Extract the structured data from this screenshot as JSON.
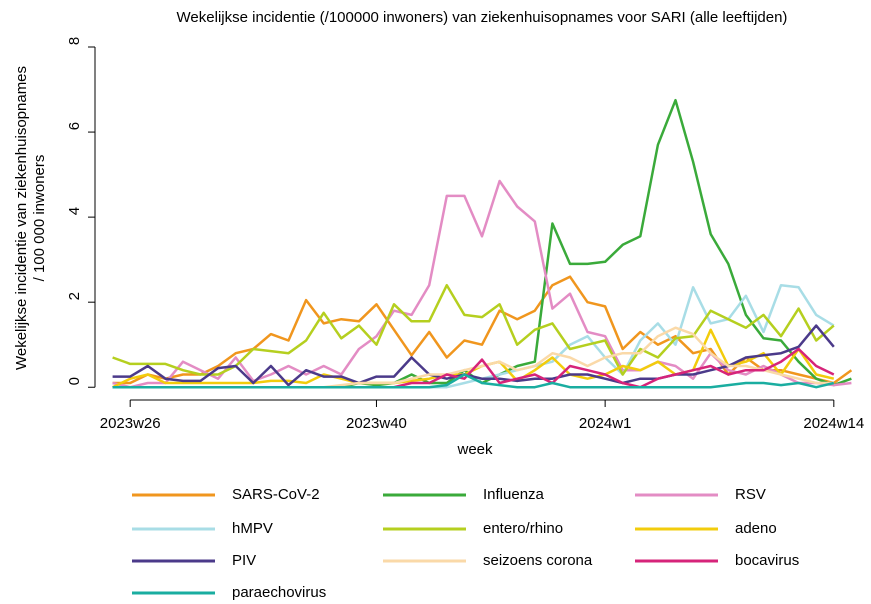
{
  "chart_data": {
    "type": "line",
    "title": "Wekelijkse incidentie (/100000 inwoners) van ziekenhuisopnames voor SARI (alle leeftijden)",
    "x_label": "week",
    "y_label": [
      "Wekelijkse incidentie van ziekenhuisopnames",
      "/ 100 000 inwoners"
    ],
    "categories": [
      null,
      "2023w26",
      null,
      null,
      null,
      null,
      null,
      null,
      null,
      null,
      null,
      null,
      null,
      null,
      null,
      "2023w40",
      null,
      null,
      null,
      null,
      null,
      null,
      null,
      null,
      null,
      null,
      null,
      null,
      "2024w1",
      null,
      null,
      null,
      null,
      null,
      null,
      null,
      null,
      null,
      null,
      null,
      null,
      "2024w14",
      null
    ],
    "ylim": [
      -0.3,
      8.4
    ],
    "yticks": [
      0,
      2,
      4,
      6,
      8
    ],
    "series": [
      {
        "name": "SARS-CoV-2",
        "color": "#f0961e",
        "values": [
          0.1,
          0.1,
          0.3,
          0.2,
          0.3,
          0.3,
          0.5,
          0.8,
          0.9,
          1.25,
          1.1,
          2.05,
          1.5,
          1.6,
          1.55,
          1.95,
          1.35,
          0.75,
          1.3,
          0.7,
          1.1,
          1.0,
          1.8,
          1.6,
          1.8,
          2.4,
          2.6,
          2.0,
          1.9,
          0.9,
          1.3,
          1.0,
          1.2,
          0.8,
          0.9,
          0.3,
          0.7,
          0.4,
          0.4,
          0.3,
          0.2,
          0.1,
          0.4
        ]
      },
      {
        "name": "Influenza",
        "color": "#3aaa3a",
        "values": [
          0,
          0,
          0,
          0,
          0,
          0,
          0,
          0,
          0,
          0,
          0,
          0,
          0,
          0,
          0.1,
          0.05,
          0.1,
          0.3,
          0.1,
          0.1,
          0.4,
          0.1,
          0.3,
          0.5,
          0.6,
          3.85,
          2.9,
          2.9,
          2.95,
          3.35,
          3.55,
          5.7,
          6.75,
          5.3,
          3.6,
          2.9,
          1.7,
          1.15,
          1.1,
          0.6,
          0.2,
          0.05,
          0.2
        ]
      },
      {
        "name": "RSV",
        "color": "#e38cc4",
        "values": [
          0.1,
          0,
          0.1,
          0.1,
          0.6,
          0.4,
          0.2,
          0.7,
          0.15,
          0.3,
          0.5,
          0.3,
          0.5,
          0.3,
          0.9,
          1.2,
          1.8,
          1.7,
          2.4,
          4.5,
          4.5,
          3.55,
          4.85,
          4.25,
          3.9,
          1.85,
          2.2,
          1.3,
          1.2,
          0.4,
          0.4,
          0.6,
          0.5,
          0.2,
          0.8,
          0.4,
          0.3,
          0.5,
          0.3,
          0.1,
          0.1,
          0.05,
          0.1
        ]
      },
      {
        "name": "hMPV",
        "color": "#a8dde6",
        "values": [
          0,
          0,
          0,
          0,
          0,
          0,
          0,
          0,
          0,
          0,
          0,
          0,
          0,
          0,
          0,
          0,
          0,
          0,
          0,
          0,
          0.1,
          0.2,
          0.3,
          0.4,
          0.5,
          0.6,
          1.0,
          1.2,
          0.7,
          0.3,
          1.1,
          1.5,
          1.0,
          2.35,
          1.5,
          1.6,
          2.15,
          1.3,
          2.4,
          2.35,
          1.7,
          1.45,
          null
        ]
      },
      {
        "name": "entero/rhino",
        "color": "#b5cf1f",
        "values": [
          0.7,
          0.55,
          0.55,
          0.55,
          0.4,
          0.3,
          0.3,
          0.5,
          0.9,
          0.85,
          0.8,
          1.1,
          1.75,
          1.15,
          1.45,
          1.0,
          1.95,
          1.55,
          1.55,
          2.4,
          1.7,
          1.65,
          1.95,
          1.0,
          1.35,
          1.5,
          0.9,
          1.0,
          1.1,
          0.3,
          0.9,
          0.7,
          1.15,
          1.2,
          1.8,
          1.6,
          1.4,
          1.7,
          1.2,
          1.85,
          1.1,
          1.45,
          null
        ]
      },
      {
        "name": "adeno",
        "color": "#f2cc0c",
        "values": [
          0,
          0.2,
          0.3,
          0.1,
          0.1,
          0.1,
          0.1,
          0.1,
          0.1,
          0.15,
          0.15,
          0.1,
          0.3,
          0.2,
          0.1,
          0.1,
          0.1,
          0.15,
          0.2,
          0.3,
          0.3,
          0.5,
          0.6,
          0.15,
          0.4,
          0.7,
          0.3,
          0.2,
          0.3,
          0.5,
          0.4,
          0.6,
          0.3,
          0.4,
          1.35,
          0.5,
          0.6,
          0.8,
          0.3,
          0.9,
          0.3,
          0.2,
          null
        ]
      },
      {
        "name": "PIV",
        "color": "#4b3a8a",
        "values": [
          0.25,
          0.25,
          0.5,
          0.2,
          0.15,
          0.15,
          0.45,
          0.5,
          0.1,
          0.5,
          0.05,
          0.4,
          0.25,
          0.25,
          0.1,
          0.25,
          0.25,
          0.7,
          0.3,
          0.2,
          0.3,
          0.2,
          0.2,
          0.15,
          0.2,
          0.2,
          0.3,
          0.3,
          0.2,
          0.1,
          0.2,
          0.2,
          0.3,
          0.3,
          0.4,
          0.5,
          0.7,
          0.75,
          0.8,
          0.95,
          1.45,
          0.95,
          null
        ]
      },
      {
        "name": "seizoens corona",
        "color": "#fad9a8",
        "values": [
          0,
          0,
          0,
          0,
          0,
          0,
          0,
          0,
          0,
          0,
          0,
          0,
          0,
          0.05,
          0.1,
          0.1,
          0.1,
          0.2,
          0.3,
          0.3,
          0.4,
          0.5,
          0.6,
          0.4,
          0.5,
          0.8,
          0.7,
          0.5,
          0.7,
          0.8,
          0.8,
          1.2,
          1.4,
          1.25,
          0.8,
          0.5,
          0.5,
          0.4,
          0.3,
          0.2,
          0.1,
          0.1,
          null
        ]
      },
      {
        "name": "bocavirus",
        "color": "#d6247a",
        "values": [
          0,
          0,
          0,
          0,
          0,
          0,
          0,
          0,
          0,
          0,
          0,
          0,
          0,
          0,
          0,
          0,
          0,
          0.1,
          0.1,
          0.3,
          0.2,
          0.65,
          0.1,
          0.2,
          0.3,
          0.1,
          0.5,
          0.4,
          0.3,
          0.1,
          0,
          0.2,
          0.3,
          0.4,
          0.5,
          0.3,
          0.4,
          0.4,
          0.6,
          0.9,
          0.5,
          0.3,
          null
        ]
      },
      {
        "name": "paraechovirus",
        "color": "#1aada0",
        "values": [
          0,
          0,
          0,
          0,
          0,
          0,
          0,
          0,
          0,
          0,
          0,
          0,
          0,
          0,
          0,
          0,
          0,
          0,
          0,
          0.05,
          0.3,
          0.1,
          0.05,
          0,
          0,
          0.1,
          0,
          0,
          0,
          0,
          0,
          0,
          0,
          0,
          0,
          0.05,
          0.1,
          0.1,
          0.05,
          0.1,
          0,
          0.1,
          null
        ]
      }
    ]
  }
}
